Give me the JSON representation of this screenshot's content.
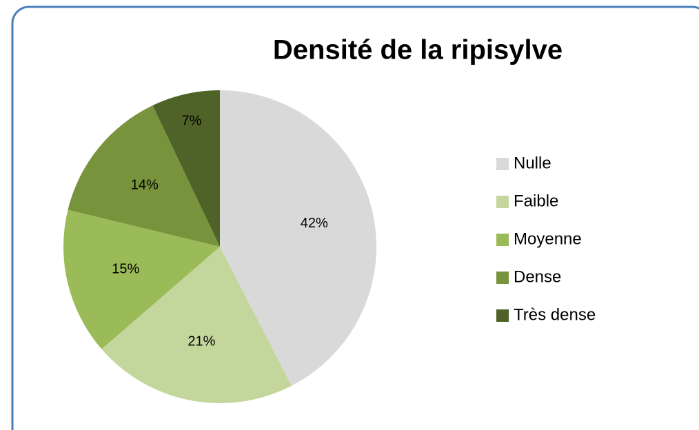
{
  "chart_data": {
    "type": "pie",
    "title": "Densité de la ripisylve",
    "categories": [
      "Nulle",
      "Faible",
      "Moyenne",
      "Dense",
      "Très dense"
    ],
    "values": [
      42,
      21,
      15,
      14,
      7
    ],
    "value_labels": [
      "42%",
      "21%",
      "15%",
      "14%",
      "7%"
    ],
    "colors": [
      "#d9d9d9",
      "#c3d69b",
      "#9bbb59",
      "#77933c",
      "#4f6228"
    ],
    "legend": "right"
  }
}
